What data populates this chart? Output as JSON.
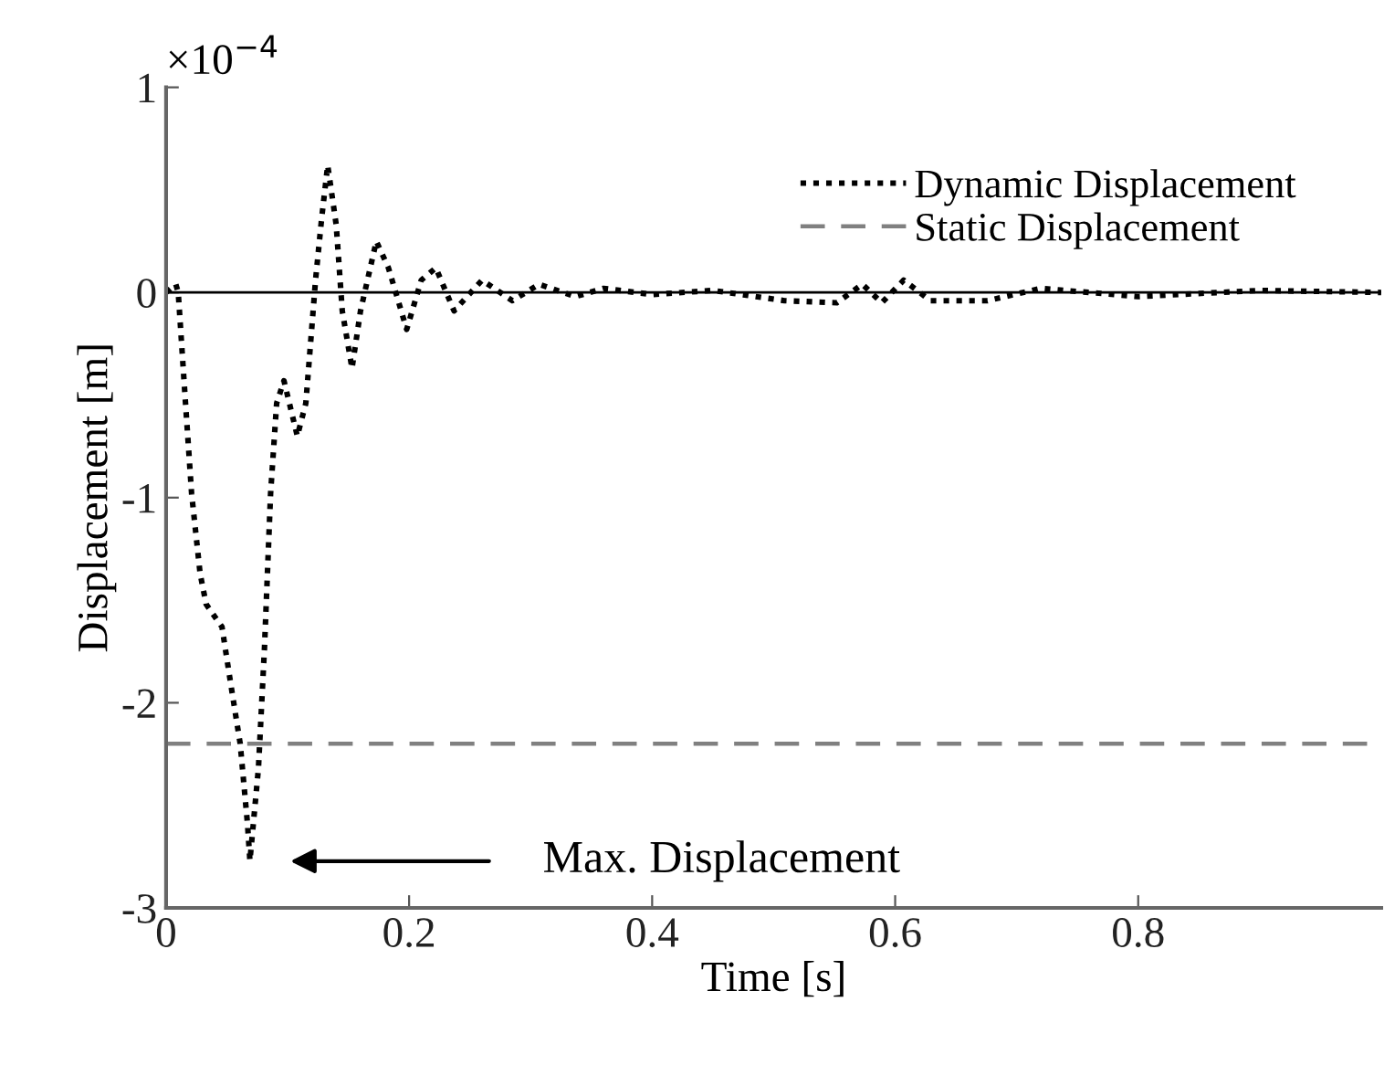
{
  "chart_data": {
    "type": "line",
    "xlabel": "Time [s]",
    "ylabel": "Displacement [m]",
    "xlim": [
      0,
      1
    ],
    "xticks": [
      0,
      0.2,
      0.4,
      0.6,
      0.8
    ],
    "ylim": [
      -3,
      1
    ],
    "yticks": [
      -3,
      -2,
      -1,
      0,
      1
    ],
    "grid": false,
    "legend": "top right",
    "marker": "none",
    "series": [
      {
        "name": "Dynamic Displacement",
        "color": "#000000",
        "line_style": "dotted",
        "x": [
          0,
          0.008,
          0.01,
          0.016,
          0.021,
          0.028,
          0.033,
          0.046,
          0.053,
          0.061,
          0.067,
          0.069,
          0.076,
          0.081,
          0.086,
          0.091,
          0.097,
          0.108,
          0.115,
          0.123,
          0.128,
          0.133,
          0.14,
          0.145,
          0.153,
          0.16,
          0.173,
          0.183,
          0.198,
          0.21,
          0.222,
          0.237,
          0.26,
          0.285,
          0.307,
          0.337,
          0.36,
          0.4,
          0.45,
          0.509,
          0.552,
          0.573,
          0.589,
          0.607,
          0.629,
          0.676,
          0.72,
          0.8,
          0.9,
          1.0
        ],
        "values": [
          0,
          0.04,
          0,
          -0.54,
          -0.98,
          -1.37,
          -1.52,
          -1.63,
          -1.9,
          -2.2,
          -2.59,
          -2.77,
          -2.32,
          -1.73,
          -0.98,
          -0.54,
          -0.43,
          -0.7,
          -0.54,
          0.06,
          0.36,
          0.62,
          0.33,
          -0.09,
          -0.37,
          -0.09,
          0.25,
          0.12,
          -0.18,
          0.06,
          0.12,
          -0.09,
          0.06,
          -0.04,
          0.04,
          -0.02,
          0.02,
          -0.01,
          0.01,
          -0.04,
          -0.05,
          0.04,
          -0.05,
          0.06,
          -0.04,
          -0.04,
          0.02,
          -0.02,
          0.01,
          0
        ]
      },
      {
        "name": "Static Displacement",
        "color": "#808080",
        "line_style": "dashed",
        "x": [
          0,
          1
        ],
        "values": [
          -2.2,
          -2.2
        ]
      }
    ],
    "ref_lines": [
      {
        "axis": "y",
        "value": 0,
        "color": "#000000",
        "line_style": "solid"
      }
    ],
    "annotations": [
      "×10$^{−4}$",
      "Max. Displacement"
    ]
  }
}
